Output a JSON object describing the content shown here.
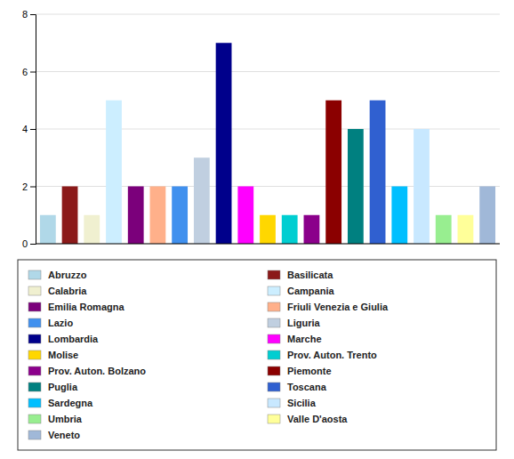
{
  "chart_data": {
    "type": "bar",
    "categories": [
      "Abruzzo",
      "Basilicata",
      "Calabria",
      "Campania",
      "Emilia Romagna",
      "Friuli Venezia e Giulia",
      "Lazio",
      "Liguria",
      "Lombardia",
      "Marche",
      "Molise",
      "Prov. Auton. Trento",
      "Prov. Auton. Bolzano",
      "Piemonte",
      "Puglia",
      "Toscana",
      "Sardegna",
      "Sicilia",
      "Umbria",
      "Valle D'aosta",
      "Veneto"
    ],
    "values": [
      1,
      2,
      1,
      5,
      2,
      2,
      2,
      3,
      7,
      2,
      1,
      1,
      1,
      5,
      4,
      5,
      2,
      4,
      1,
      1,
      2
    ],
    "colors": [
      "#B0D8E8",
      "#8B1A1A",
      "#F0F0D0",
      "#CCEEFF",
      "#7B007B",
      "#FFB08A",
      "#4090EE",
      "#C0CFE0",
      "#00008B",
      "#FF00FF",
      "#FFD700",
      "#00CED1",
      "#8B008B",
      "#8B0000",
      "#008080",
      "#3060D0",
      "#00BFFF",
      "#C8E8FF",
      "#98EE90",
      "#FFFF99",
      "#A0B8D8"
    ],
    "ylim": [
      0,
      8
    ],
    "yticks": [
      0,
      2,
      4,
      6,
      8
    ],
    "grid": true,
    "legend": "bottom",
    "tick_labels": "y"
  }
}
